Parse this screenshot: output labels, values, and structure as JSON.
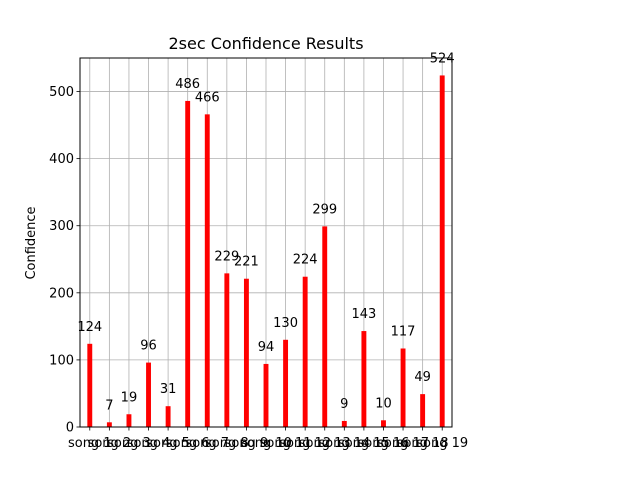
{
  "chart_data": {
    "type": "bar",
    "title": "2sec Confidence Results",
    "xlabel": "",
    "ylabel": "Confidence",
    "categories": [
      "song 1",
      "song 2",
      "song 3",
      "song 4",
      "song 5",
      "song 6",
      "song 7",
      "song 8",
      "song 9",
      "song 10",
      "song 11",
      "song 12",
      "song 13",
      "song 14",
      "song 15",
      "song 16",
      "song 17",
      "song 18",
      "song 19"
    ],
    "values": [
      124,
      7,
      19,
      96,
      31,
      486,
      466,
      229,
      221,
      94,
      130,
      224,
      299,
      9,
      143,
      10,
      117,
      49,
      524
    ],
    "ylim": [
      0,
      550
    ],
    "yticks": [
      0,
      100,
      200,
      300,
      400,
      500
    ],
    "grid": true,
    "bar_color": "#ff0000"
  }
}
